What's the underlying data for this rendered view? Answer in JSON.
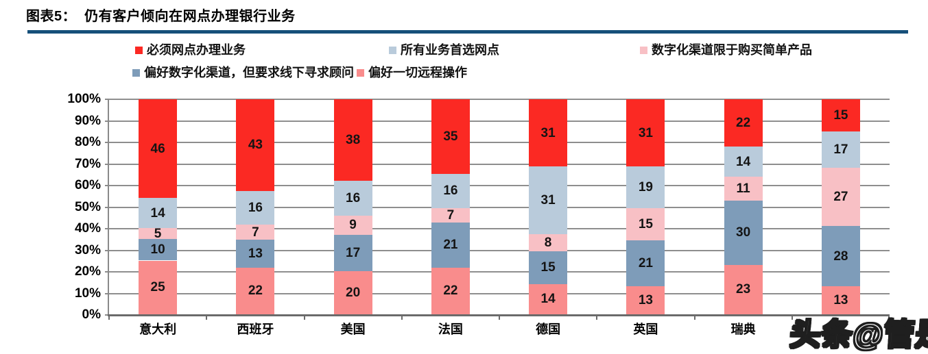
{
  "header": {
    "figure_label": "图表5：",
    "title_text": "仍有客户倾向在网点办理银行业务",
    "rule_color": "#16507a"
  },
  "watermark": "头条@管是",
  "chart_data": {
    "type": "bar",
    "subtype": "stacked_100_percent",
    "categories": [
      "意大利",
      "西班牙",
      "美国",
      "法国",
      "德国",
      "英国",
      "瑞典",
      ""
    ],
    "last_category_label_obscured_by_watermark": true,
    "series": [
      {
        "name": "偏好一切远程操作",
        "color": "#f98c8c",
        "values": [
          25,
          22,
          20,
          22,
          14,
          13,
          23,
          13
        ]
      },
      {
        "name": "偏好数字化渠道，但要求线下寻求顾问",
        "color": "#7e9cb9",
        "values": [
          10,
          13,
          17,
          21,
          15,
          21,
          30,
          28
        ]
      },
      {
        "name": "数字化渠道限于购买简单产品",
        "color": "#f8c0c5",
        "values": [
          5,
          7,
          9,
          7,
          8,
          15,
          11,
          27
        ]
      },
      {
        "name": "所有业务首选网点",
        "color": "#b9cbdb",
        "values": [
          14,
          16,
          16,
          16,
          31,
          19,
          14,
          17
        ]
      },
      {
        "name": "必须网点办理业务",
        "color": "#fb2923",
        "values": [
          46,
          43,
          38,
          35,
          31,
          31,
          22,
          15
        ]
      }
    ],
    "legend_rows": [
      [
        "必须网点办理业务",
        "所有业务首选网点",
        "数字化渠道限于购买简单产品"
      ],
      [
        "偏好数字化渠道，但要求线下寻求顾问",
        "偏好一切远程操作"
      ]
    ],
    "legend_position": "top",
    "y_ticks": [
      "100%",
      "90%",
      "80%",
      "70%",
      "60%",
      "50%",
      "40%",
      "30%",
      "20%",
      "10%",
      "0%"
    ],
    "ylim": [
      0,
      100
    ],
    "grid": true,
    "grid_color": "#8e8e8e"
  }
}
